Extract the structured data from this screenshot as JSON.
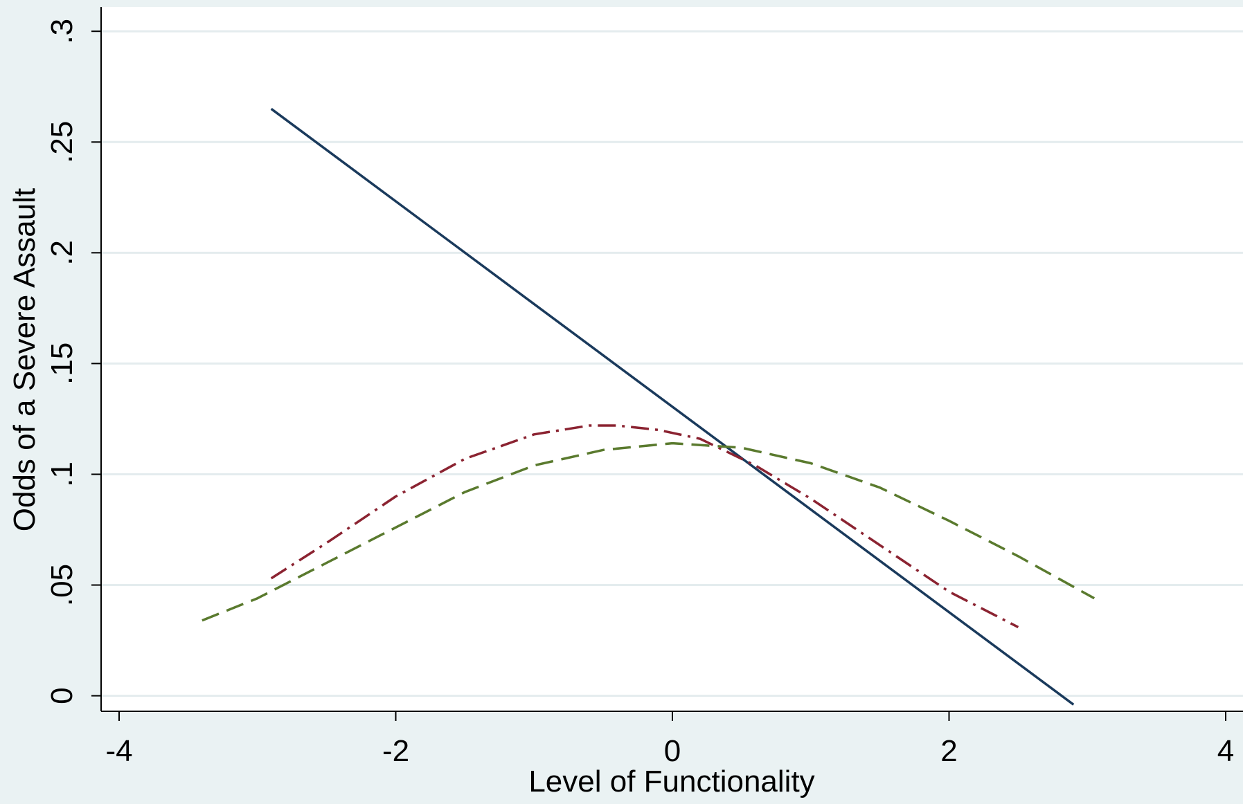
{
  "chart_data": {
    "type": "line",
    "title": "",
    "xlabel": "Level of Functionality",
    "ylabel": "Odds of a Severe Assault",
    "xlim": [
      -4.0,
      4.0
    ],
    "ylim": [
      -0.007,
      0.311
    ],
    "x_ticks": [
      -4,
      -2,
      0,
      2,
      4
    ],
    "x_tick_labels": [
      "-4",
      "-2",
      "0",
      "2",
      "4"
    ],
    "y_ticks": [
      0,
      0.05,
      0.1,
      0.15,
      0.2,
      0.25,
      0.3
    ],
    "y_tick_labels": [
      "0",
      ".05",
      ".1",
      ".15",
      ".2",
      ".25",
      ".3"
    ],
    "grid": "horizontal",
    "legend": "none",
    "series": [
      {
        "style": "solid",
        "color": "#1a3a5c",
        "points": [
          [
            -2.9,
            0.265
          ],
          [
            2.9,
            -0.004
          ]
        ]
      },
      {
        "style": "dash-dot",
        "color": "#8b2331",
        "points": [
          [
            -2.9,
            0.053
          ],
          [
            -2.5,
            0.069
          ],
          [
            -2.0,
            0.09
          ],
          [
            -1.5,
            0.107
          ],
          [
            -1.0,
            0.118
          ],
          [
            -0.6,
            0.122
          ],
          [
            -0.4,
            0.122
          ],
          [
            -0.1,
            0.12
          ],
          [
            0.2,
            0.116
          ],
          [
            0.6,
            0.104
          ],
          [
            1.0,
            0.089
          ],
          [
            1.5,
            0.068
          ],
          [
            2.0,
            0.047
          ],
          [
            2.5,
            0.031
          ]
        ]
      },
      {
        "style": "dashed",
        "color": "#5a7a2e",
        "points": [
          [
            -3.4,
            0.034
          ],
          [
            -3.0,
            0.044
          ],
          [
            -2.5,
            0.06
          ],
          [
            -2.0,
            0.076
          ],
          [
            -1.5,
            0.092
          ],
          [
            -1.0,
            0.104
          ],
          [
            -0.5,
            0.111
          ],
          [
            0.0,
            0.114
          ],
          [
            0.5,
            0.112
          ],
          [
            1.0,
            0.105
          ],
          [
            1.5,
            0.094
          ],
          [
            2.0,
            0.079
          ],
          [
            2.5,
            0.063
          ],
          [
            3.05,
            0.044
          ]
        ]
      }
    ]
  }
}
